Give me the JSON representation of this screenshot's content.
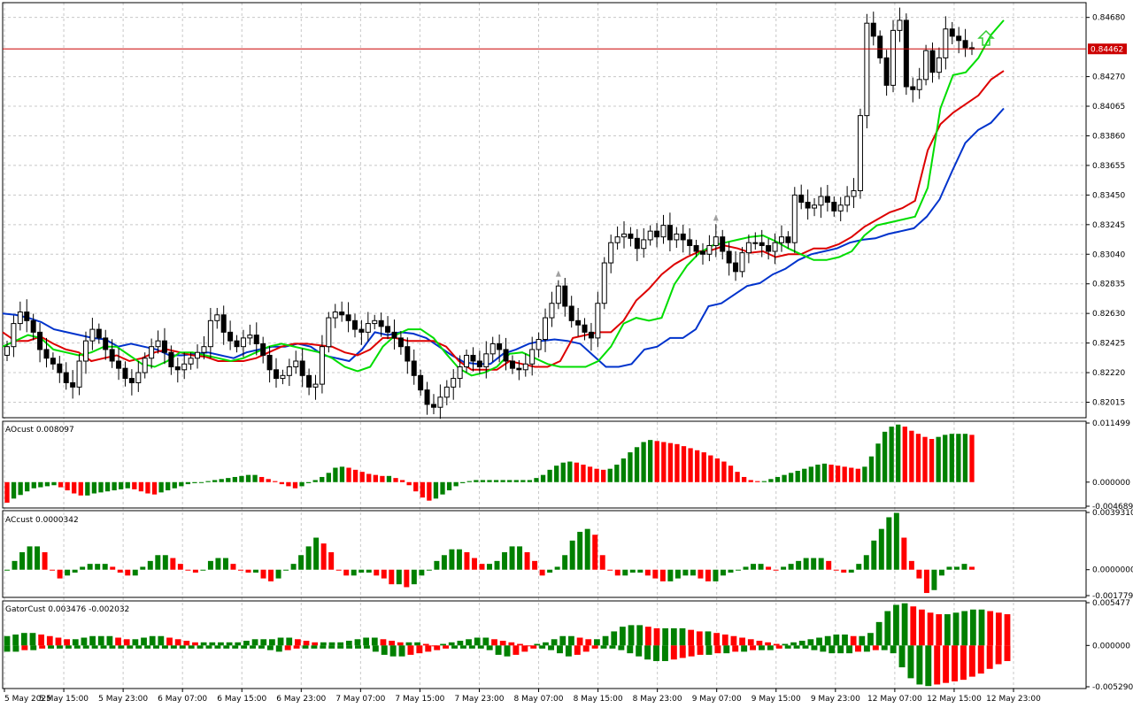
{
  "colors": {
    "up_bar": "#008000",
    "down_bar": "#ff0000",
    "jaw": "#0033cc",
    "teeth": "#dd0000",
    "lips": "#00dd00",
    "price_line": "#cc0000",
    "candle": "#000000",
    "fractal": "#a0a0a0",
    "arrow": "#33cc33"
  },
  "chart_data": [
    {
      "type": "candlestick",
      "panel": "main",
      "ylim": [
        0.8192,
        0.8477
      ],
      "y_ticks": [
        "0.84680",
        "0.84270",
        "0.84065",
        "0.83860",
        "0.83655",
        "0.83450",
        "0.83245",
        "0.83040",
        "0.82835",
        "0.82630",
        "0.82425",
        "0.82220",
        "0.82015"
      ],
      "y_tick_values": [
        0.8468,
        0.8427,
        0.84065,
        0.8386,
        0.83655,
        0.8345,
        0.83245,
        0.8304,
        0.82835,
        0.8263,
        0.82425,
        0.8222,
        0.82015
      ],
      "current_price": "0.84462",
      "current_price_value": 0.84462,
      "x_ticks": [
        "5 May 2025",
        "5 May 15:00",
        "5 May 23:00",
        "6 May 07:00",
        "6 May 15:00",
        "6 May 23:00",
        "7 May 07:00",
        "7 May 15:00",
        "7 May 23:00",
        "8 May 07:00",
        "8 May 15:00",
        "8 May 23:00",
        "9 May 07:00",
        "9 May 15:00",
        "9 May 23:00",
        "12 May 07:00",
        "12 May 15:00",
        "12 May 23:00"
      ],
      "close_series": [
        0.824,
        0.8256,
        0.8264,
        0.8258,
        0.825,
        0.8238,
        0.8232,
        0.8228,
        0.8222,
        0.8215,
        0.8212,
        0.823,
        0.8244,
        0.8252,
        0.8246,
        0.8238,
        0.823,
        0.8225,
        0.8218,
        0.8215,
        0.8222,
        0.8232,
        0.824,
        0.8244,
        0.8236,
        0.8226,
        0.8224,
        0.8228,
        0.8232,
        0.8236,
        0.824,
        0.8258,
        0.8262,
        0.825,
        0.8244,
        0.824,
        0.8246,
        0.8248,
        0.8242,
        0.8234,
        0.8224,
        0.8218,
        0.822,
        0.8226,
        0.823,
        0.822,
        0.8212,
        0.8214,
        0.824,
        0.826,
        0.8264,
        0.8262,
        0.8258,
        0.8252,
        0.825,
        0.8256,
        0.8258,
        0.8254,
        0.825,
        0.8246,
        0.824,
        0.823,
        0.822,
        0.821,
        0.82,
        0.8198,
        0.8205,
        0.8212,
        0.8218,
        0.8226,
        0.8234,
        0.823,
        0.8226,
        0.8235,
        0.8242,
        0.8238,
        0.823,
        0.8225,
        0.8224,
        0.8228,
        0.8238,
        0.8245,
        0.826,
        0.827,
        0.8282,
        0.8268,
        0.8258,
        0.8255,
        0.825,
        0.8246,
        0.827,
        0.8298,
        0.8312,
        0.8316,
        0.8318,
        0.8315,
        0.8308,
        0.8314,
        0.832,
        0.8316,
        0.8324,
        0.8314,
        0.8318,
        0.8314,
        0.831,
        0.8306,
        0.8304,
        0.831,
        0.8316,
        0.8306,
        0.8298,
        0.8292,
        0.8305,
        0.8312,
        0.8312,
        0.831,
        0.8306,
        0.8312,
        0.8316,
        0.8312,
        0.8345,
        0.834,
        0.8336,
        0.8338,
        0.8344,
        0.834,
        0.8334,
        0.8338,
        0.8344,
        0.8348,
        0.84,
        0.8464,
        0.8455,
        0.844,
        0.8421,
        0.8459,
        0.8466,
        0.842,
        0.8418,
        0.8425,
        0.8445,
        0.843,
        0.844,
        0.846,
        0.8455,
        0.8452,
        0.8447,
        0.8446
      ],
      "series": [
        {
          "name": "jaw",
          "values": [
            0.8263,
            0.8262,
            0.826,
            0.8257,
            0.8252,
            0.825,
            0.8248,
            0.8246,
            0.8245,
            0.824,
            0.8242,
            0.824,
            0.8238,
            0.8234,
            0.8234,
            0.8235,
            0.8236,
            0.8234,
            0.8232,
            0.8236,
            0.8238,
            0.824,
            0.824,
            0.8242,
            0.824,
            0.8234,
            0.8232,
            0.823,
            0.8238,
            0.825,
            0.8248,
            0.825,
            0.8249,
            0.8246,
            0.824,
            0.8234,
            0.8229,
            0.8228,
            0.8228,
            0.8235,
            0.8238,
            0.8242,
            0.8244,
            0.8245,
            0.8244,
            0.8242,
            0.8234,
            0.8226,
            0.8226,
            0.8228,
            0.8238,
            0.824,
            0.8246,
            0.8246,
            0.8252,
            0.8268,
            0.827,
            0.8276,
            0.8282,
            0.8284,
            0.829,
            0.8294,
            0.83,
            0.8304,
            0.8306,
            0.8308,
            0.8312,
            0.8314,
            0.8315,
            0.8318,
            0.832,
            0.8322,
            0.833,
            0.8342,
            0.8362,
            0.8381,
            0.839,
            0.8395,
            0.8405
          ]
        },
        {
          "name": "teeth",
          "values": [
            0.825,
            0.8244,
            0.8244,
            0.8247,
            0.8242,
            0.8238,
            0.8236,
            0.823,
            0.8232,
            0.8234,
            0.823,
            0.8232,
            0.8236,
            0.8238,
            0.8236,
            0.8234,
            0.8233,
            0.823,
            0.823,
            0.823,
            0.8232,
            0.8236,
            0.824,
            0.8242,
            0.8242,
            0.8241,
            0.824,
            0.8236,
            0.8234,
            0.8238,
            0.8246,
            0.8246,
            0.8244,
            0.8244,
            0.8244,
            0.824,
            0.823,
            0.8224,
            0.8224,
            0.8224,
            0.823,
            0.8228,
            0.8226,
            0.8226,
            0.823,
            0.8246,
            0.8248,
            0.825,
            0.825,
            0.8258,
            0.8272,
            0.828,
            0.829,
            0.8297,
            0.8302,
            0.8306,
            0.8307,
            0.831,
            0.8308,
            0.8305,
            0.8306,
            0.8302,
            0.8304,
            0.8304,
            0.8308,
            0.8308,
            0.8311,
            0.8316,
            0.8323,
            0.8328,
            0.8333,
            0.8336,
            0.8341,
            0.8376,
            0.8394,
            0.8402,
            0.8408,
            0.8414,
            0.8425,
            0.8431
          ]
        },
        {
          "name": "lips",
          "values": [
            0.824,
            0.8244,
            0.8248,
            0.8246,
            0.8238,
            0.8236,
            0.8234,
            0.8236,
            0.824,
            0.824,
            0.8234,
            0.8228,
            0.8226,
            0.823,
            0.8236,
            0.8236,
            0.8234,
            0.8232,
            0.823,
            0.8232,
            0.8236,
            0.824,
            0.8242,
            0.824,
            0.8238,
            0.8236,
            0.8232,
            0.8226,
            0.8223,
            0.8226,
            0.824,
            0.8248,
            0.8252,
            0.8252,
            0.8246,
            0.8235,
            0.8225,
            0.822,
            0.8222,
            0.8226,
            0.8235,
            0.8236,
            0.8232,
            0.8228,
            0.8226,
            0.8226,
            0.8226,
            0.823,
            0.824,
            0.8256,
            0.826,
            0.8258,
            0.826,
            0.8283,
            0.8296,
            0.8305,
            0.831,
            0.8312,
            0.8314,
            0.8316,
            0.8317,
            0.8313,
            0.8308,
            0.8304,
            0.83,
            0.83,
            0.8302,
            0.8306,
            0.8317,
            0.8324,
            0.8326,
            0.8328,
            0.833,
            0.835,
            0.8405,
            0.8428,
            0.843,
            0.844,
            0.8456,
            0.8466
          ]
        }
      ]
    },
    {
      "type": "bar",
      "panel": "AOcust",
      "label": "AOcust 0.008097",
      "ylim": [
        -0.004689,
        0.011499
      ],
      "y_ticks": [
        "0.011499",
        "0.000000",
        "-0.004689"
      ],
      "y_tick_values": [
        0.011499,
        0.0,
        -0.004689
      ],
      "values": [
        -0.004,
        -0.0032,
        -0.0025,
        -0.0018,
        -0.0012,
        -0.001,
        -0.0008,
        -0.0006,
        -0.001,
        -0.0016,
        -0.0022,
        -0.0026,
        -0.0026,
        -0.0022,
        -0.002,
        -0.0018,
        -0.0016,
        -0.0014,
        -0.0012,
        -0.0014,
        -0.0018,
        -0.0022,
        -0.0024,
        -0.002,
        -0.0016,
        -0.0012,
        -0.0008,
        -0.0004,
        -0.0002,
        0.0,
        0.0002,
        0.0004,
        0.0006,
        0.0008,
        0.001,
        0.0012,
        0.0014,
        0.0014,
        0.001,
        0.0006,
        0.0002,
        -0.0004,
        -0.0008,
        -0.0012,
        -0.0008,
        -0.0002,
        0.0004,
        0.001,
        0.0018,
        0.0028,
        0.003,
        0.0028,
        0.0024,
        0.002,
        0.0016,
        0.0014,
        0.0012,
        0.0012,
        0.0008,
        0.0004,
        -0.0006,
        -0.0018,
        -0.003,
        -0.0036,
        -0.0032,
        -0.0024,
        -0.0016,
        -0.0008,
        -0.0002,
        0.0002,
        0.0004,
        0.0004,
        0.0004,
        0.0004,
        0.0004,
        0.0004,
        0.0004,
        0.0004,
        0.0004,
        0.0008,
        0.0014,
        0.0024,
        0.0032,
        0.0038,
        0.004,
        0.0038,
        0.0034,
        0.003,
        0.0026,
        0.0024,
        0.0026,
        0.0034,
        0.0046,
        0.0058,
        0.0068,
        0.0078,
        0.0082,
        0.008,
        0.0078,
        0.0076,
        0.0074,
        0.007,
        0.0066,
        0.0062,
        0.0058,
        0.0052,
        0.0046,
        0.004,
        0.0032,
        0.002,
        0.001,
        0.0004,
        0.0002,
        0.0002,
        0.0006,
        0.001,
        0.0014,
        0.0018,
        0.0022,
        0.0026,
        0.003,
        0.0034,
        0.0036,
        0.0034,
        0.0032,
        0.003,
        0.0028,
        0.0026,
        0.003,
        0.005,
        0.0075,
        0.0098,
        0.0108,
        0.0112,
        0.0108,
        0.01,
        0.0094,
        0.0088,
        0.0084,
        0.0088,
        0.0092,
        0.0094,
        0.0094,
        0.0094,
        0.0092
      ]
    },
    {
      "type": "bar",
      "panel": "ACcust",
      "label": "ACcust 0.0000342",
      "ylim": [
        -0.0017792,
        0.0039331
      ],
      "y_ticks": [
        "0.0039310",
        "0.0000000",
        "-0.0017792"
      ],
      "y_tick_values": [
        0.003931,
        0.0,
        -0.0017792
      ],
      "values": [
        0.0,
        0.0006,
        0.0012,
        0.0016,
        0.0016,
        0.0012,
        0.0,
        -0.0006,
        -0.0004,
        -0.0002,
        0.0002,
        0.0004,
        0.0004,
        0.0004,
        0.0002,
        -0.0002,
        -0.0004,
        -0.0004,
        0.0002,
        0.0006,
        0.001,
        0.001,
        0.0008,
        0.0004,
        0.0,
        -0.0002,
        0.0,
        0.0006,
        0.0008,
        0.0008,
        0.0004,
        0.0,
        -0.0002,
        -0.0002,
        -0.0006,
        -0.0008,
        -0.0006,
        0.0,
        0.0004,
        0.001,
        0.0016,
        0.0022,
        0.0018,
        0.0012,
        0.0,
        -0.0004,
        -0.0004,
        -0.0002,
        -0.0002,
        -0.0004,
        -0.0006,
        -0.001,
        -0.001,
        -0.0012,
        -0.001,
        -0.0004,
        0.0,
        0.0006,
        0.001,
        0.0014,
        0.0014,
        0.0012,
        0.0008,
        0.0004,
        0.0004,
        0.0006,
        0.0012,
        0.0016,
        0.0016,
        0.0012,
        0.0006,
        -0.0004,
        -0.0002,
        0.0002,
        0.001,
        0.002,
        0.0026,
        0.0028,
        0.0024,
        0.001,
        0.0,
        -0.0004,
        -0.0004,
        -0.0002,
        -0.0002,
        -0.0004,
        -0.0006,
        -0.0008,
        -0.0008,
        -0.0006,
        -0.0004,
        -0.0004,
        -0.0006,
        -0.0008,
        -0.0008,
        -0.0004,
        -0.0002,
        0.0,
        0.0002,
        0.0004,
        0.0004,
        0.0002,
        0.0,
        0.0002,
        0.0004,
        0.0006,
        0.0008,
        0.0008,
        0.0008,
        0.0006,
        0.0,
        -0.0002,
        -0.0002,
        0.0004,
        0.001,
        0.002,
        0.0028,
        0.0036,
        0.0039,
        0.0022,
        0.0006,
        -0.0006,
        -0.0016,
        -0.0014,
        -0.0004,
        0.0002,
        0.0002,
        0.0004,
        0.0002
      ]
    },
    {
      "type": "bar",
      "panel": "GatorCust",
      "label": "GatorCust 0.003476 -0.002032",
      "ylim": [
        -0.00529,
        0.005477
      ],
      "y_ticks": [
        "0.005477",
        "0.000000",
        "-0.005290"
      ],
      "y_tick_values": [
        0.005477,
        0.0,
        -0.00529
      ],
      "series": [
        {
          "name": "upper",
          "values": [
            0.0012,
            0.0014,
            0.0016,
            0.0016,
            0.0014,
            0.0012,
            0.001,
            0.0008,
            0.0008,
            0.001,
            0.0012,
            0.0012,
            0.0012,
            0.001,
            0.0008,
            0.0008,
            0.001,
            0.0012,
            0.0012,
            0.001,
            0.0008,
            0.0006,
            0.0004,
            0.0004,
            0.0004,
            0.0004,
            0.0004,
            0.0004,
            0.0006,
            0.0008,
            0.0008,
            0.0008,
            0.001,
            0.001,
            0.0008,
            0.0006,
            0.0004,
            0.0004,
            0.0004,
            0.0004,
            0.0006,
            0.0008,
            0.001,
            0.001,
            0.0008,
            0.0006,
            0.0004,
            0.0004,
            0.0004,
            0.0002,
            0.0,
            0.0002,
            0.0004,
            0.0006,
            0.0008,
            0.001,
            0.001,
            0.0008,
            0.0006,
            0.0004,
            0.0002,
            0.0,
            0.0002,
            0.0004,
            0.0008,
            0.0012,
            0.0012,
            0.001,
            0.0008,
            0.0008,
            0.0012,
            0.0018,
            0.0024,
            0.0026,
            0.0026,
            0.0024,
            0.0022,
            0.0022,
            0.0022,
            0.0022,
            0.002,
            0.0018,
            0.0018,
            0.0016,
            0.0014,
            0.0012,
            0.001,
            0.0008,
            0.0006,
            0.0004,
            0.0002,
            0.0002,
            0.0004,
            0.0006,
            0.0008,
            0.001,
            0.0012,
            0.0014,
            0.0014,
            0.0012,
            0.0012,
            0.0016,
            0.003,
            0.0044,
            0.0052,
            0.0054,
            0.005,
            0.0046,
            0.0042,
            0.004,
            0.004,
            0.0042,
            0.0044,
            0.0046,
            0.0046,
            0.0044,
            0.0042,
            0.004
          ]
        },
        {
          "name": "lower",
          "values": [
            -0.0008,
            -0.0008,
            -0.0006,
            -0.0006,
            -0.0004,
            -0.0004,
            -0.0004,
            -0.0004,
            -0.0004,
            -0.0004,
            -0.0004,
            -0.0004,
            -0.0004,
            -0.0004,
            -0.0004,
            -0.0004,
            -0.0004,
            -0.0004,
            -0.0004,
            -0.0004,
            -0.0004,
            -0.0004,
            -0.0004,
            -0.0004,
            -0.0004,
            -0.0004,
            -0.0004,
            -0.0004,
            -0.0004,
            -0.0004,
            -0.0006,
            -0.0008,
            -0.0006,
            -0.0004,
            -0.0004,
            -0.0004,
            -0.0004,
            -0.0004,
            -0.0004,
            -0.0004,
            -0.0004,
            -0.0004,
            -0.0008,
            -0.0012,
            -0.0014,
            -0.0014,
            -0.0012,
            -0.001,
            -0.0008,
            -0.0006,
            -0.0004,
            -0.0004,
            -0.0004,
            -0.0004,
            -0.0004,
            -0.0006,
            -0.0012,
            -0.0014,
            -0.0012,
            -0.0008,
            -0.0004,
            -0.0004,
            -0.0006,
            -0.001,
            -0.0014,
            -0.0012,
            -0.0008,
            -0.0004,
            -0.0004,
            -0.0004,
            -0.0006,
            -0.001,
            -0.0014,
            -0.0018,
            -0.002,
            -0.002,
            -0.0018,
            -0.0016,
            -0.0014,
            -0.0012,
            -0.0012,
            -0.001,
            -0.001,
            -0.0008,
            -0.0008,
            -0.0006,
            -0.0006,
            -0.0006,
            -0.0004,
            -0.0004,
            -0.0004,
            -0.0004,
            -0.0006,
            -0.0008,
            -0.001,
            -0.001,
            -0.001,
            -0.0008,
            -0.0008,
            -0.0006,
            -0.0006,
            -0.001,
            -0.0028,
            -0.0042,
            -0.005,
            -0.0052,
            -0.005,
            -0.0048,
            -0.0046,
            -0.0044,
            -0.004,
            -0.0036,
            -0.003,
            -0.0024,
            -0.002
          ]
        }
      ]
    }
  ]
}
